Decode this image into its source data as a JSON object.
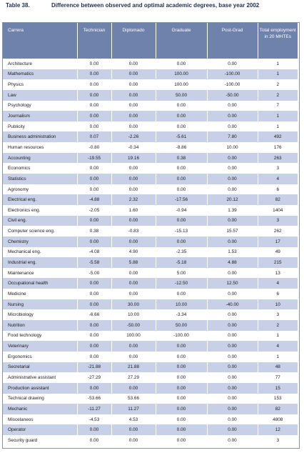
{
  "caption": {
    "label": "Table 38.",
    "title": "Difference between observed and optimal academic degrees, base year 2002"
  },
  "headers": [
    "Carrera",
    "Technician",
    "Diplomado",
    "Graduate",
    "Post-Grad",
    "Total employment in 20 MHTEs"
  ],
  "rows": [
    [
      "Architecture",
      "0.00",
      "0.00",
      "0.00",
      "0.00",
      "1"
    ],
    [
      "Mathematics",
      "0.00",
      "0.00",
      "100.00",
      "-100.00",
      "1"
    ],
    [
      "Physics",
      "0.00",
      "0.00",
      "100.00",
      "-100.00",
      "2"
    ],
    [
      "Law",
      "0.00",
      "0.00",
      "50.00",
      "-50.00",
      "2"
    ],
    [
      "Psychology",
      "0.00",
      "0.00",
      "0.00",
      "0.00",
      "7"
    ],
    [
      "Journalism",
      "0.00",
      "0.00",
      "0.00",
      "0.00",
      "1"
    ],
    [
      "Publicity",
      "0.00",
      "0.00",
      "0.00",
      "0.00",
      "1"
    ],
    [
      "Business administration",
      "0.07",
      "-2.26",
      "-5.61",
      "7.80",
      "492"
    ],
    [
      "Human resources",
      "-0.80",
      "-0.34",
      "-8.86",
      "10.00",
      "176"
    ],
    [
      "Accounting",
      "-19.55",
      "19.16",
      "0.38",
      "0.00",
      "263"
    ],
    [
      "Economics",
      "0.00",
      "0.00",
      "0.00",
      "0.00",
      "3"
    ],
    [
      "Statistics",
      "0.00",
      "0.00",
      "0.00",
      "0.00",
      "4"
    ],
    [
      "Agronomy",
      "0.00",
      "0.00",
      "0.00",
      "0.00",
      "6"
    ],
    [
      "Electrical eng.",
      "-4.88",
      "2.32",
      "-17.56",
      "20.12",
      "82"
    ],
    [
      "Electronics eng.",
      "-2.05",
      "1.60",
      "-0.94",
      "1.39",
      "1404"
    ],
    [
      "Civil eng.",
      "0.00",
      "0.00",
      "0.00",
      "0.00",
      "3"
    ],
    [
      "Computer science eng.",
      "0.38",
      "-0.83",
      "-15.13",
      "15.57",
      "262"
    ],
    [
      "Chemistry",
      "0.00",
      "0.00",
      "0.00",
      "0.00",
      "17"
    ],
    [
      "Mechanical eng.",
      "-4.08",
      "4.90",
      "-2.35",
      "1.53",
      "49"
    ],
    [
      "Industrial eng.",
      "-5.58",
      "5.88",
      "-5.18",
      "4.88",
      "215"
    ],
    [
      "Maintenance",
      "-5.00",
      "0.00",
      "5.00",
      "0.00",
      "13"
    ],
    [
      "Occupational health",
      "0.00",
      "0.00",
      "-12.50",
      "12.50",
      "4"
    ],
    [
      "Medicine",
      "0.00",
      "0.00",
      "0.00",
      "0.00",
      "6"
    ],
    [
      "Nursing",
      "0.00",
      "30.00",
      "10.00",
      "-40.00",
      "10"
    ],
    [
      "Microbiology",
      "-6.66",
      "10.00",
      "-3.34",
      "0.00",
      "3"
    ],
    [
      "Nutrition",
      "0.00",
      "-50.00",
      "50.00",
      "0.00",
      "2"
    ],
    [
      "Food technology",
      "0.00",
      "100.00",
      "-100.00",
      "0.00",
      "1"
    ],
    [
      "Veterinary",
      "0.00",
      "0.00",
      "0.00",
      "0.00",
      "4"
    ],
    [
      "Ergonomics",
      "0.00",
      "0.00",
      "0.00",
      "0.00",
      "1"
    ],
    [
      "Secretarial",
      "-21.88",
      "21.88",
      "0.00",
      "0.00",
      "48"
    ],
    [
      "Administrative assistant",
      "-27.29",
      "27.29",
      "0.00",
      "0.00",
      "77"
    ],
    [
      "Production assistant",
      "0.00",
      "0.00",
      "0.00",
      "0.00",
      "15"
    ],
    [
      "Technical drawing",
      "-53.66",
      "53.66",
      "0.00",
      "0.00",
      "153"
    ],
    [
      "Mechanic",
      "-11.27",
      "11.27",
      "0.00",
      "0.00",
      "82"
    ],
    [
      "Miscelaneos",
      "-4.53",
      "4.53",
      "0.00",
      "0.00",
      "4808"
    ],
    [
      "Operator",
      "0.00",
      "0.00",
      "0.00",
      "0.00",
      "12"
    ],
    [
      "Security guard",
      "0.00",
      "0.00",
      "0.00",
      "0.00",
      "3"
    ]
  ],
  "colors": {
    "header_bg": "#6f82ac",
    "stripe_bg": "#c7d0e6"
  }
}
